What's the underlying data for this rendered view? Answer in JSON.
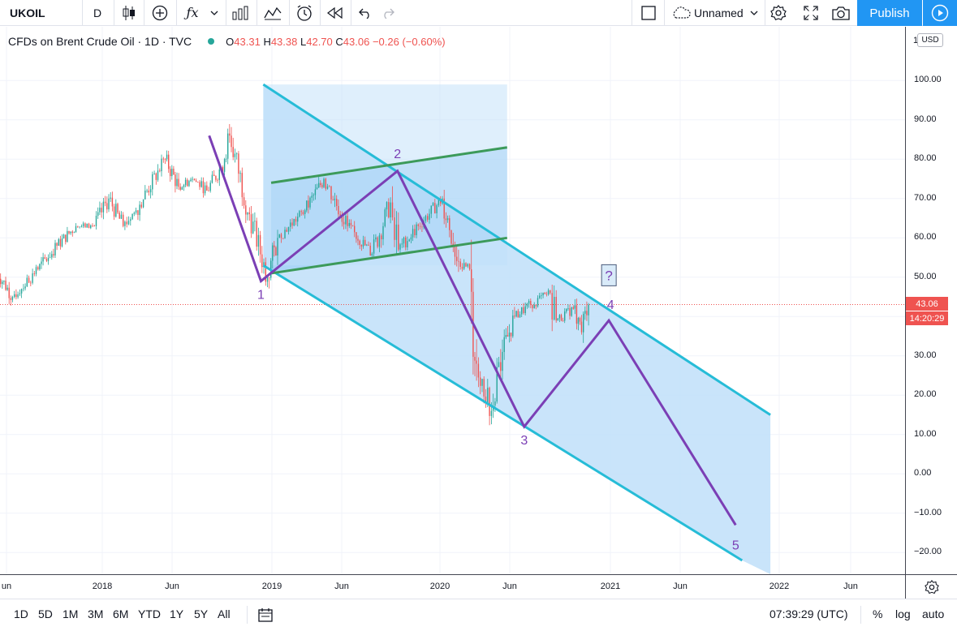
{
  "toolbar": {
    "symbol": "UKOIL",
    "interval": "D",
    "layout_name": "Unnamed",
    "publish_label": "Publish",
    "icons": [
      "candles-icon",
      "add-compare-icon",
      "indicators-icon",
      "chevron-down-icon",
      "bar-style-icon",
      "line-style-icon",
      "alert-icon",
      "replay-icon",
      "undo-icon",
      "redo-icon",
      "rectangle-icon",
      "cloud-icon",
      "gear-icon",
      "fullscreen-icon",
      "camera-icon",
      "play-icon"
    ]
  },
  "legend": {
    "title": "CFDs on Brent Crude Oil · 1D · TVC",
    "open_label": "O",
    "open": "43.31",
    "high_label": "H",
    "high": "43.38",
    "low_label": "L",
    "low": "42.70",
    "close_label": "C",
    "close": "43.06",
    "change": "−0.26 (−0.60%)"
  },
  "price_axis": {
    "currency": "USD",
    "top_partial": "1",
    "ticks": [
      "100.00",
      "90.00",
      "80.00",
      "70.00",
      "60.00",
      "50.00",
      "40.00",
      "30.00",
      "20.00",
      "10.00",
      "0.00",
      "−10.00",
      "−20.00"
    ],
    "last_price": "43.06",
    "countdown": "14:20:29"
  },
  "time_axis": {
    "labels": [
      "un",
      "2018",
      "Jun",
      "2019",
      "Jun",
      "2020",
      "Jun",
      "2021",
      "Jun",
      "2022",
      "Jun"
    ]
  },
  "bottom_bar": {
    "ranges": [
      "1D",
      "5D",
      "1M",
      "3M",
      "6M",
      "YTD",
      "1Y",
      "5Y",
      "All"
    ],
    "clock": "07:39:29 (UTC)",
    "percent_label": "%",
    "log_label": "log",
    "auto_label": "auto"
  },
  "drawings": {
    "wave_labels": [
      "1",
      "2",
      "3",
      "4",
      "5"
    ],
    "question_label": "?",
    "colors": {
      "channel_line": "#26bcd7",
      "channel_fill": "#bfdff9",
      "rect_fill": "#bfdff9",
      "inner_channel": "#3c9a5a",
      "wave_line": "#7b3fb5",
      "up_candle": "#26a69a",
      "down_candle": "#ef5350"
    }
  },
  "chart_data": {
    "type": "candlestick",
    "title": "CFDs on Brent Crude Oil · 1D · TVC",
    "ylim": [
      -25,
      110
    ],
    "last_price": 43.06,
    "price_path": [
      [
        "2017-05-15",
        52
      ],
      [
        "2017-06-21",
        45
      ],
      [
        "2017-08-15",
        52
      ],
      [
        "2017-09-25",
        58
      ],
      [
        "2017-11-05",
        63
      ],
      [
        "2017-12-15",
        63
      ],
      [
        "2018-01-15",
        70
      ],
      [
        "2018-02-15",
        63
      ],
      [
        "2018-03-15",
        67
      ],
      [
        "2018-05-17",
        80
      ],
      [
        "2018-06-15",
        73
      ],
      [
        "2018-07-15",
        75
      ],
      [
        "2018-08-15",
        72
      ],
      [
        "2018-09-15",
        78
      ],
      [
        "2018-10-03",
        86
      ],
      [
        "2018-11-15",
        66
      ],
      [
        "2018-12-24",
        50
      ],
      [
        "2019-01-15",
        60
      ],
      [
        "2019-03-15",
        67
      ],
      [
        "2019-04-25",
        75
      ],
      [
        "2019-06-15",
        63
      ],
      [
        "2019-08-07",
        56
      ],
      [
        "2019-09-16",
        69
      ],
      [
        "2019-10-03",
        57
      ],
      [
        "2019-11-15",
        63
      ],
      [
        "2020-01-06",
        70
      ],
      [
        "2020-02-10",
        54
      ],
      [
        "2020-03-05",
        52
      ],
      [
        "2020-03-20",
        28
      ],
      [
        "2020-04-21",
        16
      ],
      [
        "2020-05-15",
        31
      ],
      [
        "2020-06-10",
        40
      ],
      [
        "2020-07-15",
        43
      ],
      [
        "2020-08-26",
        46
      ],
      [
        "2020-09-08",
        39
      ],
      [
        "2020-10-15",
        42
      ],
      [
        "2020-11-02",
        36
      ],
      [
        "2020-11-17",
        43.06
      ]
    ],
    "drawings": {
      "descending_channel": {
        "upper": [
          [
            "2018-12-15",
            99
          ],
          [
            "2021-12-15",
            15
          ]
        ],
        "lower": [
          [
            "2018-12-15",
            53
          ],
          [
            "2021-10-15",
            -22
          ]
        ]
      },
      "rising_channel": {
        "upper": [
          [
            "2019-01-01",
            74
          ],
          [
            "2020-05-25",
            83
          ]
        ],
        "lower": [
          [
            "2019-01-01",
            51
          ],
          [
            "2020-05-25",
            60
          ]
        ]
      },
      "wave_path": [
        [
          "2018-08-20",
          86
        ],
        [
          "2018-12-10",
          49
        ],
        [
          "2019-10-01",
          77
        ],
        [
          "2020-07-01",
          12
        ],
        [
          "2020-12-31",
          39
        ],
        [
          "2021-10-01",
          -13
        ]
      ]
    }
  }
}
